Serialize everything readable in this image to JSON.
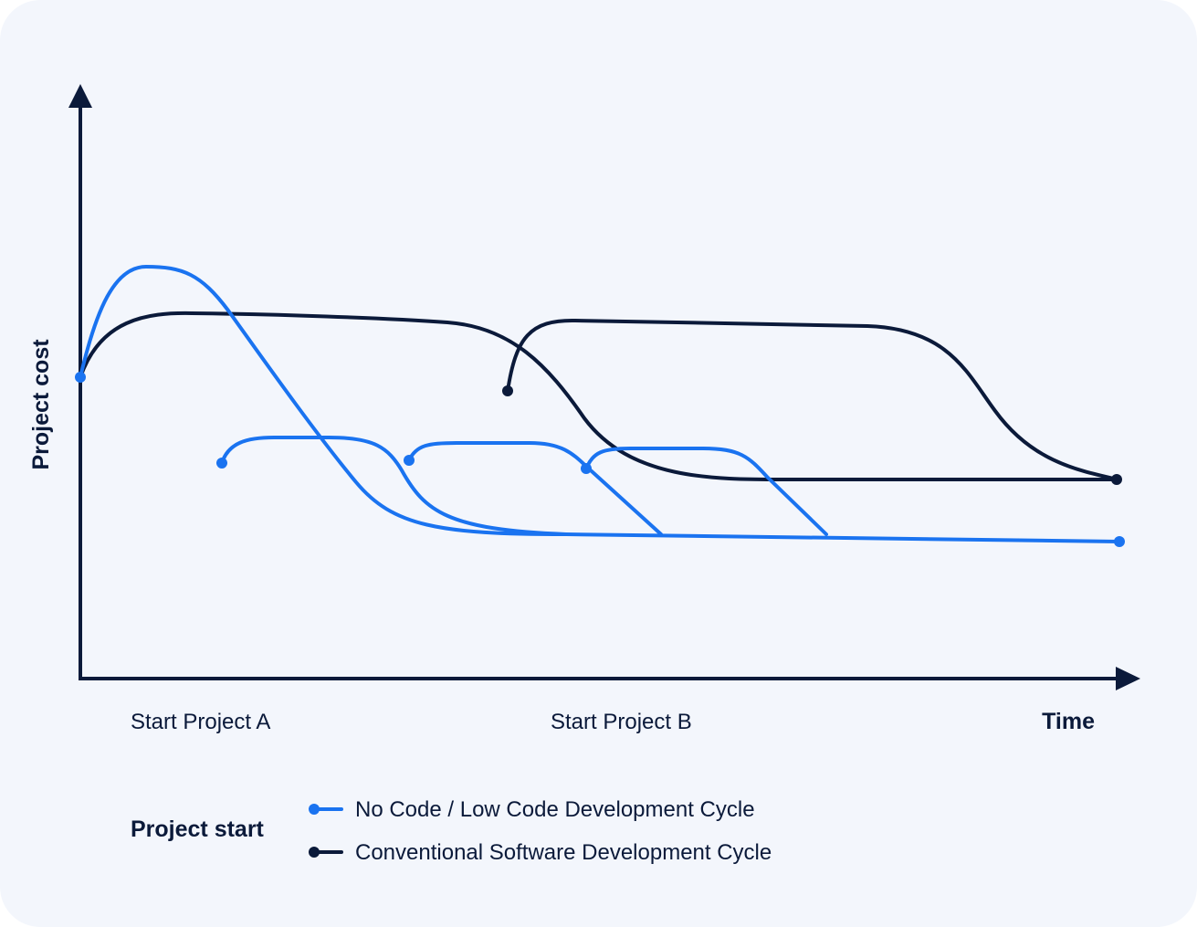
{
  "axes": {
    "y_label": "Project cost",
    "x_label": "Time",
    "x_ticks": [
      "Start Project A",
      "Start Project B"
    ]
  },
  "legend": {
    "title": "Project start",
    "items": [
      {
        "label": "No Code / Low Code Development Cycle",
        "color": "#1a73f0",
        "series": "nocode"
      },
      {
        "label": "Conventional Software Development Cycle",
        "color": "#0b1a3a",
        "series": "conventional"
      }
    ]
  },
  "colors": {
    "nocode": "#1a73f0",
    "conventional": "#0b1a3a",
    "axis": "#0b1a3a",
    "background": "#f3f6fc"
  }
}
